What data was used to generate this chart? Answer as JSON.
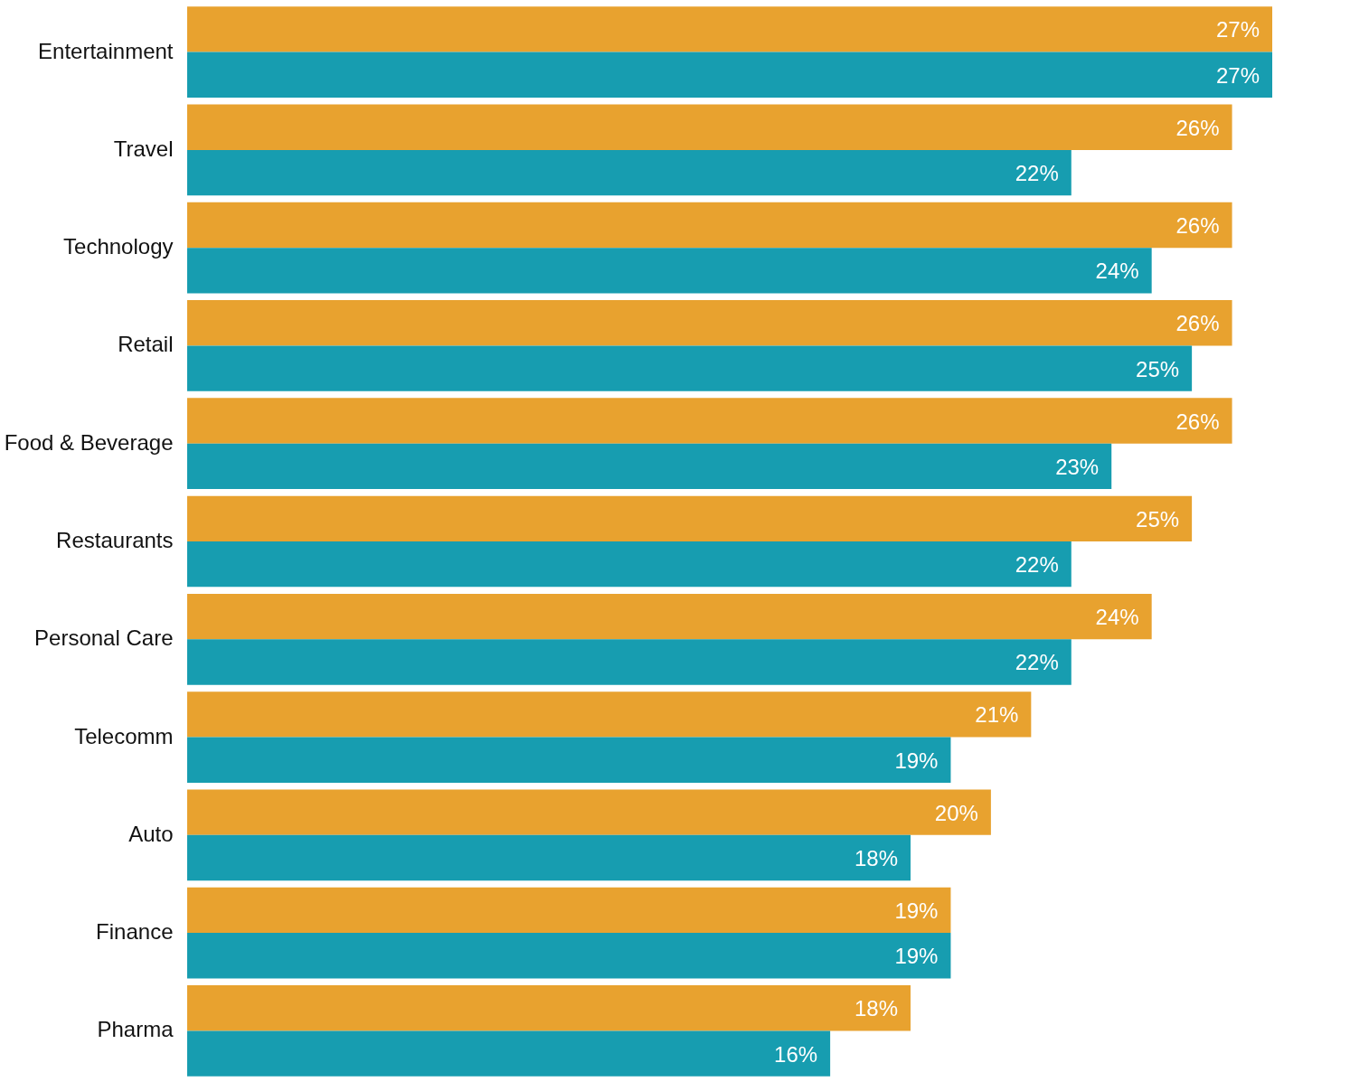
{
  "chart_data": {
    "type": "bar",
    "orientation": "horizontal",
    "categories": [
      "Entertainment",
      "Travel",
      "Technology",
      "Retail",
      "Food & Beverage",
      "Restaurants",
      "Personal Care",
      "Telecomm",
      "Auto",
      "Finance",
      "Pharma"
    ],
    "series": [
      {
        "color": "#e8a22f",
        "values": [
          27,
          26,
          26,
          26,
          26,
          25,
          24,
          21,
          20,
          19,
          18
        ],
        "value_labels": [
          "27%",
          "26%",
          "26%",
          "26%",
          "26%",
          "25%",
          "24%",
          "21%",
          "20%",
          "19%",
          "18%"
        ]
      },
      {
        "color": "#179db0",
        "values": [
          27,
          22,
          24,
          25,
          23,
          22,
          22,
          19,
          18,
          19,
          16
        ],
        "value_labels": [
          "27%",
          "22%",
          "24%",
          "25%",
          "23%",
          "22%",
          "22%",
          "19%",
          "18%",
          "19%",
          "16%"
        ]
      }
    ],
    "xlim": [
      0,
      27
    ],
    "tick_labels": "y",
    "legend": false
  }
}
